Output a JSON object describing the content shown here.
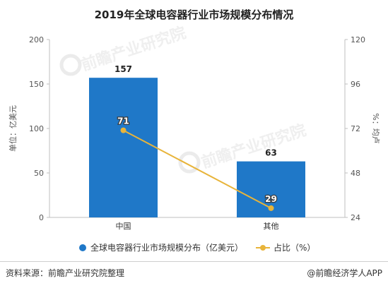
{
  "chart_data": {
    "type": "bar",
    "title": "2019年全球电容器行业市场规模分布情况",
    "categories": [
      "中国",
      "其他"
    ],
    "series": [
      {
        "name": "全球电容器行业市场规模分布（亿美元）",
        "type": "bar",
        "axis": "left",
        "values": [
          157,
          63
        ],
        "color": "#1f78c8"
      },
      {
        "name": "占比（%）",
        "type": "line",
        "axis": "right",
        "values": [
          71,
          29
        ],
        "color": "#e8b43a"
      }
    ],
    "ylabel": "单位：亿美元",
    "y2label": "%：均卢",
    "ylim": [
      0,
      200
    ],
    "yticks": [
      "0",
      "50",
      "100",
      "150",
      "200"
    ],
    "y2lim": [
      24,
      120
    ],
    "y2ticks": [
      "24",
      "48",
      "72",
      "96",
      "120"
    ],
    "legend_position": "bottom",
    "grid": false
  },
  "watermark": "前瞻产业研究院",
  "footer": {
    "source": "资料来源：前瞻产业研究院整理",
    "brand": "@前瞻经济学人APP"
  }
}
